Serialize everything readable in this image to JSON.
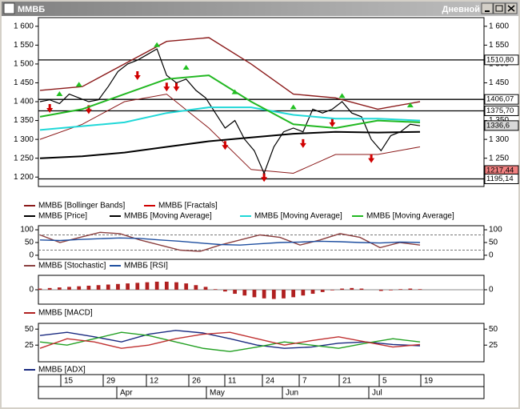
{
  "window": {
    "title": "ММВБ",
    "mode": "Дневной"
  },
  "chart_data": [
    {
      "type": "line",
      "ylim": [
        1175,
        1623
      ],
      "yticks": [
        {
          "value": 1200,
          "label": "1 200"
        },
        {
          "value": 1250,
          "label": "1 250"
        },
        {
          "value": 1300,
          "label": "1 300"
        },
        {
          "value": 1350,
          "label": "1 350"
        },
        {
          "value": 1400,
          "label": "1 400"
        },
        {
          "value": 1450,
          "label": "1 450"
        },
        {
          "value": 1500,
          "label": "1 500"
        },
        {
          "value": 1550,
          "label": "1 550"
        },
        {
          "value": 1600,
          "label": "1 600"
        }
      ],
      "levels": [
        {
          "value": 1510.8,
          "label": "1510,80",
          "color": "#ffffff"
        },
        {
          "value": 1406.07,
          "label": "1406,07",
          "color": "#ffffff"
        },
        {
          "value": 1375.7,
          "label": "1375,70",
          "color": "#ffffff"
        },
        {
          "value": 1336.6,
          "label": "1336,6",
          "color": "#d8d8d8"
        },
        {
          "value": 1217.44,
          "label": "1217,44",
          "color": "#f08080"
        },
        {
          "value": 1195.14,
          "label": "1195,14",
          "color": "#ffffff"
        }
      ],
      "series": [
        {
          "name": "ММВБ [Bollinger Bands]",
          "color": "#8b1a1a",
          "values": [
            1430,
            1440,
            1500,
            1560,
            1570,
            1500,
            1420,
            1410,
            1380,
            1400
          ],
          "lower": [
            1300,
            1340,
            1400,
            1420,
            1330,
            1220,
            1210,
            1260,
            1260,
            1280
          ]
        },
        {
          "name": "ММВБ [Fractals]",
          "color": "#d00000",
          "values": [
            null,
            1383,
            1415,
            null,
            1440,
            1380,
            null,
            null,
            null,
            null,
            1470,
            null,
            1545,
            1440,
            1440,
            1485,
            null,
            null,
            null,
            1285,
            1420,
            null,
            null,
            1200,
            null,
            null,
            1380,
            1290,
            null,
            null,
            1345,
            1410,
            null,
            null,
            1250,
            null,
            null,
            null,
            1385,
            null
          ]
        },
        {
          "name": "ММВБ [Price]",
          "color": "#000000",
          "values": [
            1400,
            1405,
            1395,
            1420,
            1410,
            1400,
            1405,
            1440,
            1480,
            1500,
            1510,
            1525,
            1540,
            1470,
            1450,
            1460,
            1430,
            1410,
            1370,
            1330,
            1350,
            1300,
            1270,
            1210,
            1280,
            1320,
            1330,
            1320,
            1380,
            1370,
            1380,
            1400,
            1370,
            1360,
            1300,
            1270,
            1310,
            1320,
            1340,
            1336
          ]
        },
        {
          "name": "ММВБ [Moving Average]",
          "color": "#000000",
          "values": [
            1250,
            1255,
            1265,
            1280,
            1295,
            1305,
            1315,
            1320,
            1318,
            1320
          ]
        },
        {
          "name": "ММВБ [Moving Average]",
          "color": "#20d8d8",
          "values": [
            1325,
            1335,
            1345,
            1370,
            1385,
            1385,
            1365,
            1355,
            1355,
            1350
          ]
        },
        {
          "name": "ММВБ [Moving Average]",
          "color": "#22b822",
          "values": [
            1360,
            1380,
            1420,
            1460,
            1470,
            1400,
            1340,
            1330,
            1350,
            1345
          ]
        }
      ]
    },
    {
      "type": "line",
      "ylim": [
        -16,
        116
      ],
      "yticks": [
        0,
        50,
        100
      ],
      "series": [
        {
          "name": "ММВБ [Stochastic]",
          "color": "#8b4040",
          "values": [
            80,
            50,
            70,
            90,
            85,
            60,
            40,
            20,
            15,
            40,
            60,
            80,
            70,
            40,
            60,
            85,
            70,
            30,
            50,
            40
          ]
        },
        {
          "name": "ММВБ [RSI]",
          "color": "#1f4fa0",
          "values": [
            60,
            58,
            62,
            65,
            68,
            66,
            60,
            55,
            48,
            42,
            40,
            45,
            50,
            52,
            55,
            53,
            50,
            48,
            52,
            50
          ]
        }
      ]
    },
    {
      "type": "bar",
      "ylim": [
        -25,
        25
      ],
      "yticks": [
        0
      ],
      "series": [
        {
          "name": "ММВБ [MACD]",
          "color": "#b02020",
          "values": [
            2,
            3,
            4,
            5,
            6,
            7,
            8,
            9,
            10,
            11,
            12,
            13,
            14,
            14,
            13,
            11,
            8,
            5,
            1,
            -3,
            -7,
            -10,
            -13,
            -15,
            -16,
            -15,
            -13,
            -10,
            -7,
            -4,
            -1,
            2,
            3,
            2,
            0,
            -2,
            -1,
            1,
            2,
            1
          ]
        }
      ]
    },
    {
      "type": "line",
      "ylim": [
        -1,
        59
      ],
      "yticks": [
        25,
        50
      ],
      "series": [
        {
          "name": "ММВБ [ADX]",
          "color": "#1a2a80",
          "values": [
            40,
            45,
            38,
            30,
            42,
            48,
            44,
            35,
            25,
            20,
            22,
            28,
            30,
            26,
            24
          ]
        },
        {
          "color": "#22a022",
          "values": [
            30,
            25,
            35,
            45,
            40,
            30,
            20,
            15,
            22,
            30,
            25,
            20,
            28,
            35,
            30
          ]
        },
        {
          "color": "#c03030",
          "values": [
            20,
            35,
            30,
            20,
            25,
            35,
            42,
            45,
            35,
            25,
            32,
            38,
            30,
            22,
            26
          ]
        }
      ]
    }
  ],
  "date_axis": {
    "days": [
      "15",
      "29",
      "12",
      "26",
      "11",
      "24",
      "7",
      "21",
      "5",
      "19"
    ],
    "months": [
      "Apr",
      "May",
      "Jun",
      "Jul"
    ]
  }
}
